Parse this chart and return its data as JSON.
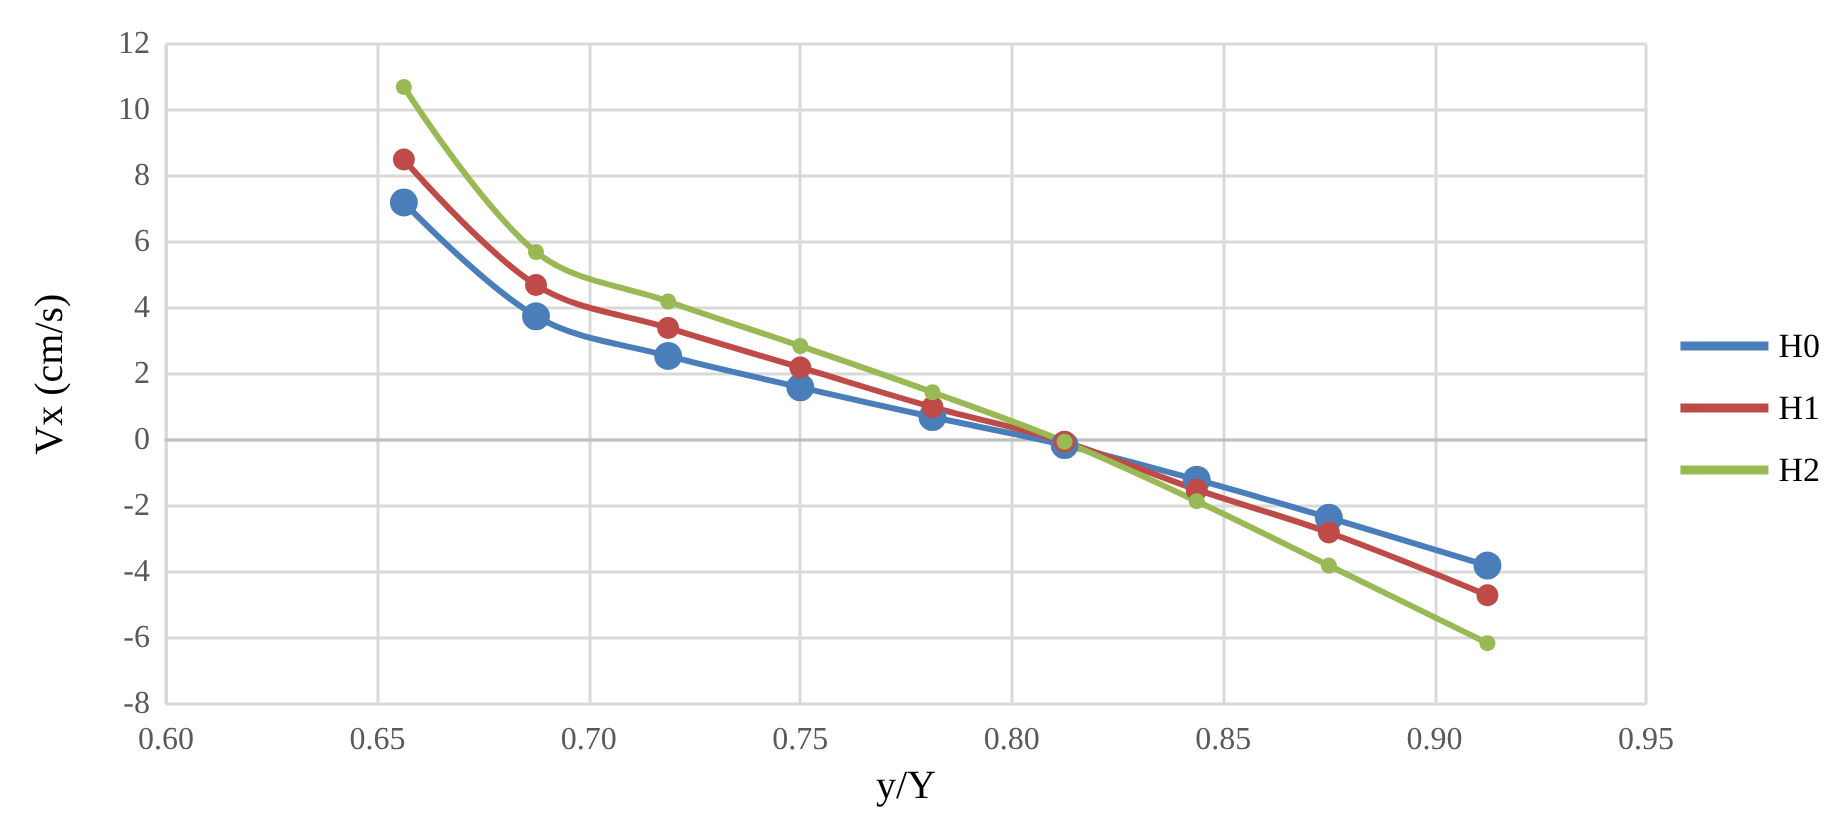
{
  "chart_data": {
    "type": "line",
    "xlabel": "y/Y",
    "ylabel": "Vx (cm/s)",
    "x": [
      0.65625,
      0.6875,
      0.71875,
      0.75,
      0.78125,
      0.8125,
      0.84375,
      0.875,
      0.9125
    ],
    "series": [
      {
        "name": "H0",
        "color": "#4a7ebb",
        "values": [
          7.2,
          3.75,
          2.55,
          1.6,
          0.7,
          -0.15,
          -1.2,
          -2.35,
          -3.8
        ]
      },
      {
        "name": "H1",
        "color": "#be4b48",
        "values": [
          8.5,
          4.7,
          3.4,
          2.2,
          1.0,
          -0.05,
          -1.5,
          -2.8,
          -4.7
        ]
      },
      {
        "name": "H2",
        "color": "#98b954",
        "values": [
          10.7,
          5.7,
          4.2,
          2.85,
          1.45,
          -0.05,
          -1.85,
          -3.8,
          -6.15
        ]
      }
    ],
    "xlim": [
      0.6,
      0.95
    ],
    "xticks": [
      {
        "value": 0.6,
        "label": "0.60"
      },
      {
        "value": 0.65,
        "label": "0.65"
      },
      {
        "value": 0.7,
        "label": "0.70"
      },
      {
        "value": 0.75,
        "label": "0.75"
      },
      {
        "value": 0.8,
        "label": "0.80"
      },
      {
        "value": 0.85,
        "label": "0.85"
      },
      {
        "value": 0.9,
        "label": "0.90"
      },
      {
        "value": 0.95,
        "label": "0.95"
      }
    ],
    "ylim": [
      -8,
      12
    ],
    "yticks": [
      -8,
      -6,
      -4,
      -2,
      0,
      2,
      4,
      6,
      8,
      10,
      12
    ],
    "grid": true,
    "legend": "right",
    "marker": "circle",
    "line_style": "solid"
  }
}
